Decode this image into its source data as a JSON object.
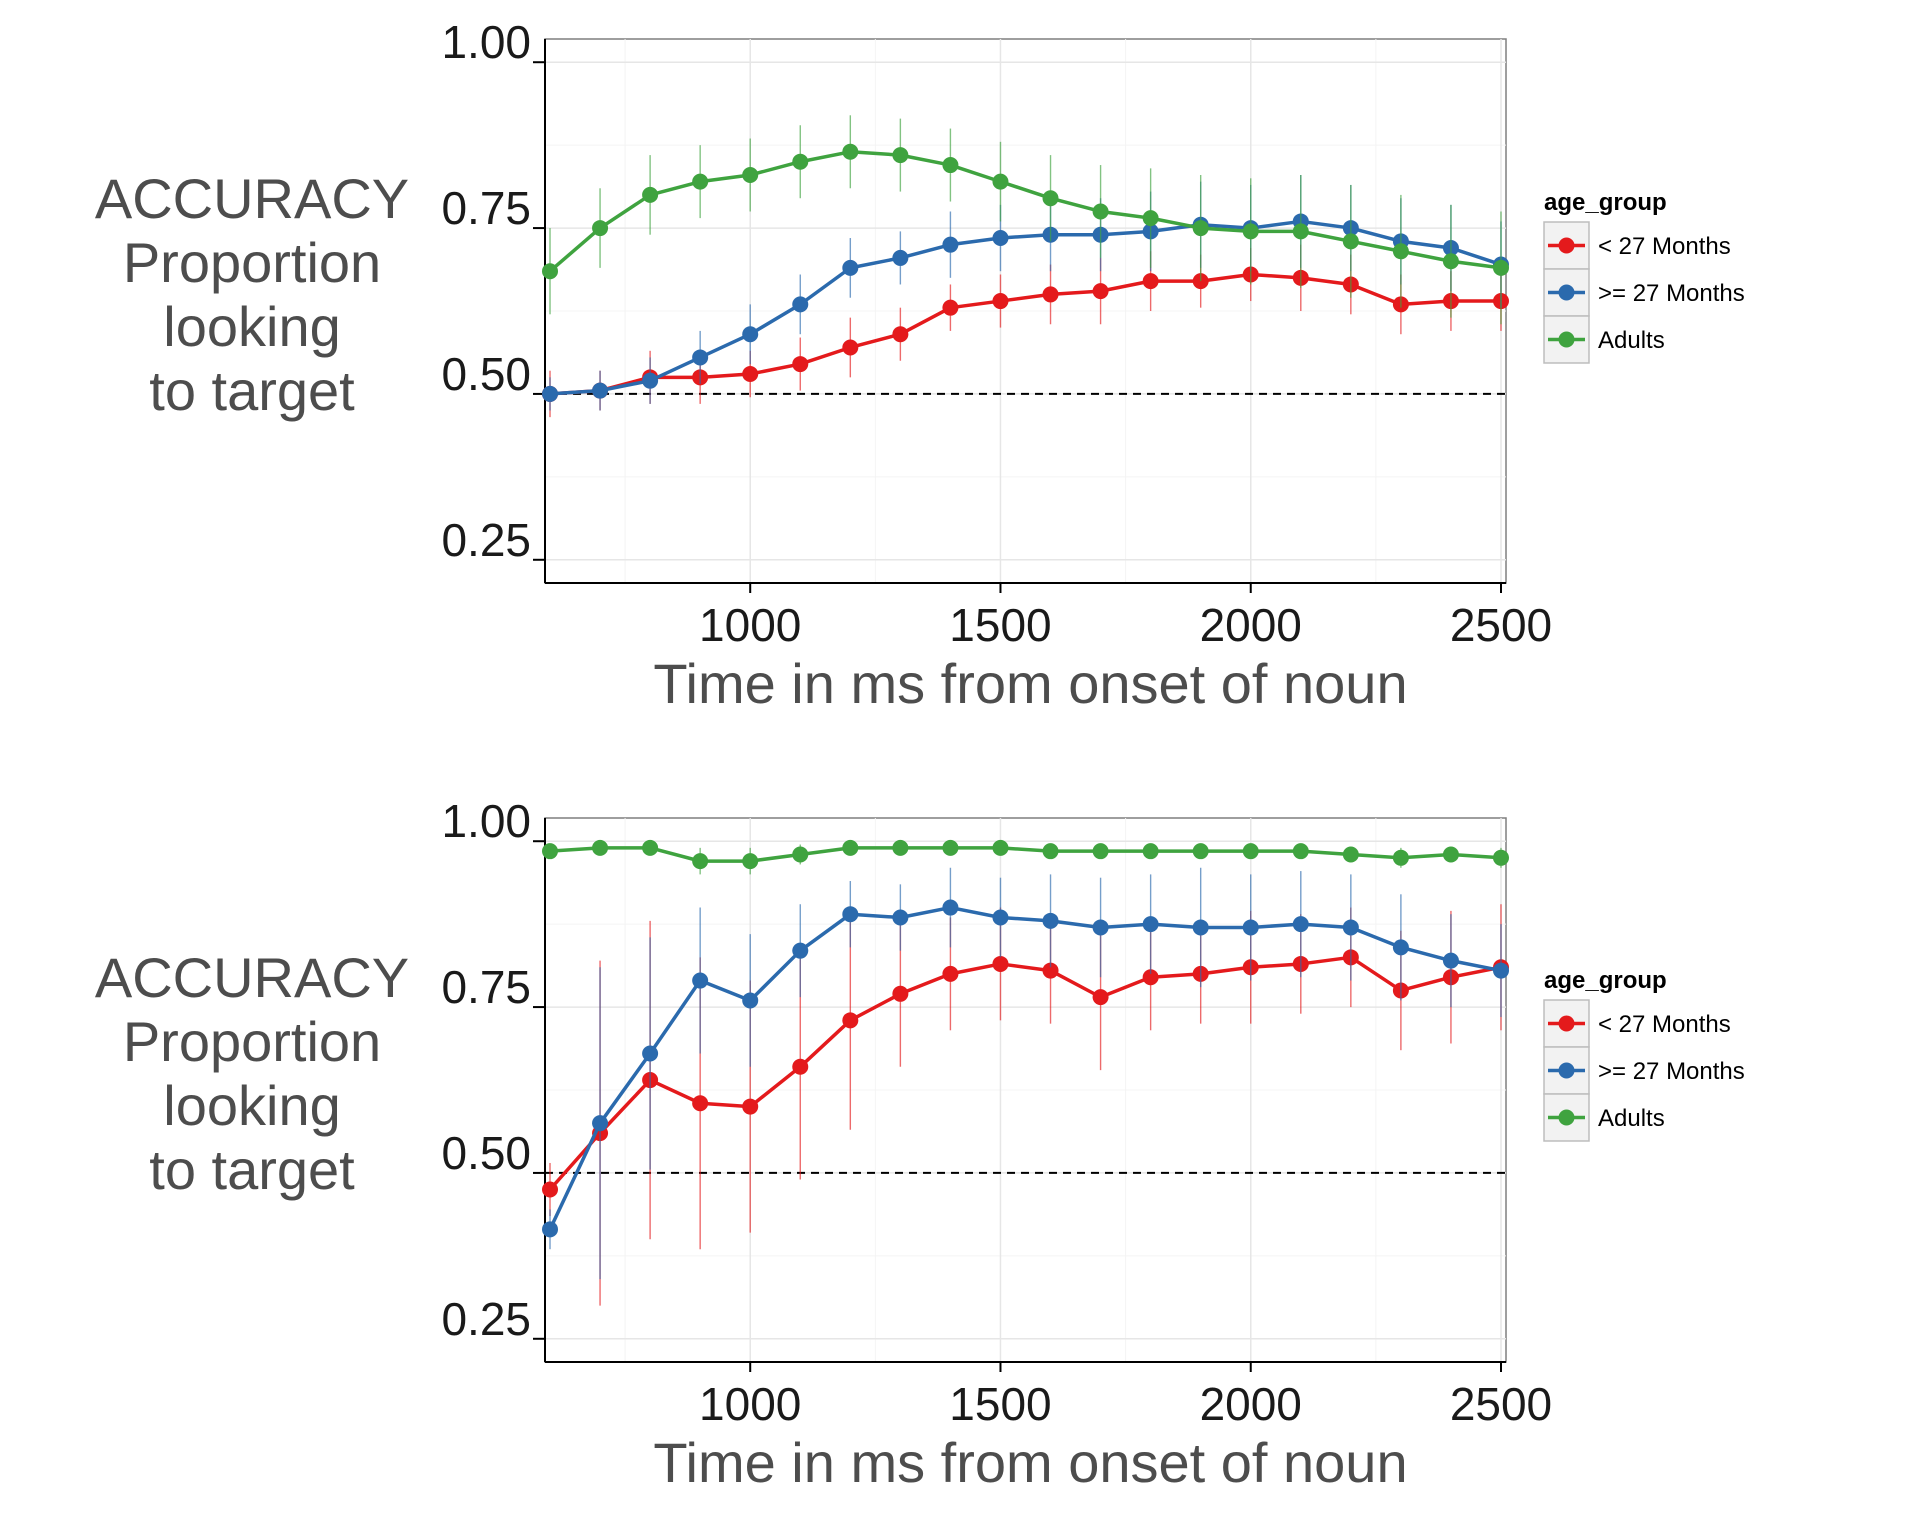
{
  "chart_data": [
    {
      "type": "line",
      "xlabel": "Time in ms from onset of noun",
      "ylabel": [
        "ACCURACY",
        "Proportion",
        "looking",
        "to target"
      ],
      "xlim": [
        590,
        2510
      ],
      "ylim": [
        0.215,
        1.035
      ],
      "xticks": [
        "1000",
        "1500",
        "2000",
        "2500"
      ],
      "xtick_values": [
        1000,
        1500,
        2000,
        2500
      ],
      "yticks": [
        "0.25",
        "0.50",
        "0.75",
        "1.00"
      ],
      "ytick_values": [
        0.25,
        0.5,
        0.75,
        1.0
      ],
      "reference_line": 0.5,
      "grid": true,
      "legend_position": "right",
      "legend_title": "age_group",
      "x": [
        600,
        700,
        800,
        900,
        1000,
        1100,
        1200,
        1300,
        1400,
        1500,
        1600,
        1700,
        1800,
        1900,
        2000,
        2100,
        2200,
        2300,
        2400,
        2500
      ],
      "series": [
        {
          "name": "< 27 Months",
          "color": "#e41a1c",
          "values": [
            0.5,
            0.505,
            0.525,
            0.525,
            0.53,
            0.545,
            0.57,
            0.59,
            0.63,
            0.64,
            0.65,
            0.655,
            0.67,
            0.67,
            0.68,
            0.675,
            0.665,
            0.635,
            0.64,
            0.64
          ],
          "err": [
            0.035,
            0.03,
            0.04,
            0.04,
            0.035,
            0.04,
            0.045,
            0.04,
            0.035,
            0.04,
            0.045,
            0.05,
            0.045,
            0.04,
            0.04,
            0.05,
            0.045,
            0.045,
            0.045,
            0.045
          ]
        },
        {
          "name": ">= 27 Months",
          "color": "#2b6aad",
          "values": [
            0.5,
            0.505,
            0.52,
            0.555,
            0.59,
            0.635,
            0.69,
            0.705,
            0.725,
            0.735,
            0.74,
            0.74,
            0.745,
            0.755,
            0.75,
            0.76,
            0.75,
            0.73,
            0.72,
            0.695
          ],
          "err": [
            0.025,
            0.03,
            0.035,
            0.04,
            0.045,
            0.045,
            0.045,
            0.04,
            0.05,
            0.05,
            0.055,
            0.055,
            0.06,
            0.065,
            0.065,
            0.07,
            0.065,
            0.065,
            0.065,
            0.065
          ]
        },
        {
          "name": "Adults",
          "color": "#3fa33f",
          "values": [
            0.685,
            0.75,
            0.8,
            0.82,
            0.83,
            0.85,
            0.865,
            0.86,
            0.845,
            0.82,
            0.795,
            0.775,
            0.765,
            0.75,
            0.745,
            0.745,
            0.73,
            0.715,
            0.7,
            0.69
          ],
          "err": [
            0.065,
            0.06,
            0.06,
            0.055,
            0.055,
            0.055,
            0.055,
            0.055,
            0.055,
            0.06,
            0.065,
            0.07,
            0.075,
            0.08,
            0.08,
            0.085,
            0.085,
            0.085,
            0.085,
            0.085
          ]
        }
      ]
    },
    {
      "type": "line",
      "xlabel": "Time in ms from onset of noun",
      "ylabel": [
        "ACCURACY",
        "Proportion",
        "looking",
        "to target"
      ],
      "xlim": [
        590,
        2510
      ],
      "ylim": [
        0.215,
        1.035
      ],
      "xticks": [
        "1000",
        "1500",
        "2000",
        "2500"
      ],
      "xtick_values": [
        1000,
        1500,
        2000,
        2500
      ],
      "yticks": [
        "0.25",
        "0.50",
        "0.75",
        "1.00"
      ],
      "ytick_values": [
        0.25,
        0.5,
        0.75,
        1.0
      ],
      "reference_line": 0.5,
      "grid": true,
      "legend_position": "right",
      "legend_title": "age_group",
      "x": [
        600,
        700,
        800,
        900,
        1000,
        1100,
        1200,
        1300,
        1400,
        1500,
        1600,
        1700,
        1800,
        1900,
        2000,
        2100,
        2200,
        2300,
        2400,
        2500
      ],
      "series": [
        {
          "name": "< 27 Months",
          "color": "#e41a1c",
          "values": [
            0.475,
            0.56,
            0.64,
            0.605,
            0.6,
            0.66,
            0.73,
            0.77,
            0.8,
            0.815,
            0.805,
            0.765,
            0.795,
            0.8,
            0.81,
            0.815,
            0.825,
            0.775,
            0.795,
            0.81
          ],
          "err": [
            0.04,
            0.26,
            0.24,
            0.22,
            0.19,
            0.17,
            0.165,
            0.11,
            0.085,
            0.085,
            0.08,
            0.11,
            0.08,
            0.075,
            0.085,
            0.075,
            0.075,
            0.09,
            0.1,
            0.095
          ]
        },
        {
          "name": ">= 27 Months",
          "color": "#2b6aad",
          "values": [
            0.415,
            0.575,
            0.68,
            0.79,
            0.76,
            0.835,
            0.89,
            0.885,
            0.9,
            0.885,
            0.88,
            0.87,
            0.875,
            0.87,
            0.87,
            0.875,
            0.87,
            0.84,
            0.82,
            0.805
          ],
          "err": [
            0.03,
            0.235,
            0.175,
            0.11,
            0.1,
            0.07,
            0.05,
            0.05,
            0.06,
            0.06,
            0.07,
            0.075,
            0.075,
            0.09,
            0.08,
            0.08,
            0.08,
            0.08,
            0.07,
            0.07
          ]
        },
        {
          "name": "Adults",
          "color": "#3fa33f",
          "values": [
            0.985,
            0.99,
            0.99,
            0.97,
            0.97,
            0.98,
            0.99,
            0.99,
            0.99,
            0.99,
            0.985,
            0.985,
            0.985,
            0.985,
            0.985,
            0.985,
            0.98,
            0.975,
            0.98,
            0.975
          ],
          "err": [
            0.01,
            0.01,
            0.01,
            0.02,
            0.02,
            0.015,
            0.01,
            0.01,
            0.01,
            0.01,
            0.01,
            0.01,
            0.01,
            0.01,
            0.01,
            0.01,
            0.01,
            0.015,
            0.01,
            0.015
          ]
        }
      ]
    }
  ]
}
